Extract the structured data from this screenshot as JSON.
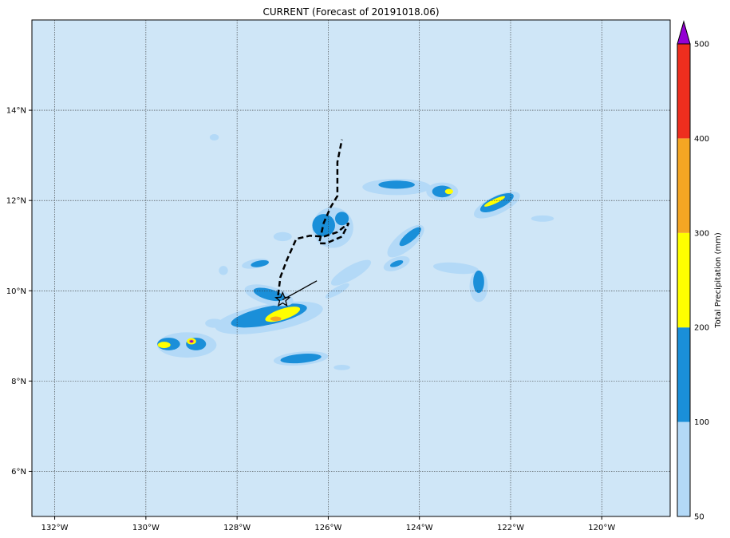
{
  "title": "CURRENT (Forecast of 20191018.06)",
  "map": {
    "lon_range": [
      -132.5,
      -118.5
    ],
    "lat_range": [
      5.0,
      16.0
    ],
    "ocean_color": "#cfe6f7",
    "grid": true,
    "x_ticks": [
      {
        "value": -132,
        "label": "132°W"
      },
      {
        "value": -130,
        "label": "130°W"
      },
      {
        "value": -128,
        "label": "128°W"
      },
      {
        "value": -126,
        "label": "126°W"
      },
      {
        "value": -124,
        "label": "124°W"
      },
      {
        "value": -122,
        "label": "122°W"
      },
      {
        "value": -120,
        "label": "120°W"
      }
    ],
    "y_ticks": [
      {
        "value": 6,
        "label": "6°N"
      },
      {
        "value": 8,
        "label": "8°N"
      },
      {
        "value": 10,
        "label": "10°N"
      },
      {
        "value": 12,
        "label": "12°N"
      },
      {
        "value": 14,
        "label": "14°N"
      }
    ]
  },
  "colorbar": {
    "label": "Total Precipitation (mm)",
    "levels": [
      50,
      100,
      200,
      300,
      400,
      500
    ],
    "colors": [
      "#b3d9f7",
      "#1a8fd9",
      "#ffff00",
      "#f5a623",
      "#ee2e1e"
    ],
    "extend_color": "#9400d3",
    "tick_labels": [
      "50",
      "100",
      "200",
      "300",
      "400",
      "500"
    ]
  },
  "storm_center": {
    "lon": -127.0,
    "lat": 9.8
  },
  "motion_vector": {
    "from": [
      -127.0,
      9.8
    ],
    "to": [
      -126.25,
      10.22
    ]
  },
  "forecast_track": [
    [
      -127.1,
      9.9
    ],
    [
      -127.05,
      10.3
    ],
    [
      -126.9,
      10.7
    ],
    [
      -126.7,
      11.15
    ],
    [
      -126.4,
      11.22
    ],
    [
      -126.1,
      11.2
    ],
    [
      -125.8,
      11.3
    ],
    [
      -125.55,
      11.5
    ],
    [
      -125.7,
      11.2
    ],
    [
      -126.05,
      11.05
    ],
    [
      -126.2,
      11.05
    ],
    [
      -126.1,
      11.5
    ],
    [
      -125.95,
      11.85
    ],
    [
      -125.8,
      12.1
    ],
    [
      -125.8,
      12.5
    ],
    [
      -125.8,
      12.85
    ],
    [
      -125.7,
      13.35
    ]
  ],
  "precip_areas": [
    {
      "level": 0,
      "lon": -129.1,
      "lat": 8.8,
      "rx": 0.65,
      "ry": 0.28,
      "rot": 0
    },
    {
      "level": 1,
      "lon": -129.5,
      "lat": 8.82,
      "rx": 0.25,
      "ry": 0.14,
      "rot": 0
    },
    {
      "level": 1,
      "lon": -128.9,
      "lat": 8.82,
      "rx": 0.22,
      "ry": 0.14,
      "rot": 0
    },
    {
      "level": 2,
      "lon": -129.6,
      "lat": 8.8,
      "rx": 0.14,
      "ry": 0.07,
      "rot": 0
    },
    {
      "level": 2,
      "lon": -129.0,
      "lat": 8.88,
      "rx": 0.1,
      "ry": 0.07,
      "rot": 0
    },
    {
      "level": 3,
      "lon": -129.0,
      "lat": 8.88,
      "rx": 0.06,
      "ry": 0.04,
      "rot": 0
    },
    {
      "level": 5,
      "lon": -129.0,
      "lat": 8.88,
      "rx": 0.035,
      "ry": 0.025,
      "rot": 0
    },
    {
      "level": 0,
      "lon": -128.5,
      "lat": 9.28,
      "rx": 0.2,
      "ry": 0.1,
      "rot": 0
    },
    {
      "level": 0,
      "lon": -127.3,
      "lat": 9.4,
      "rx": 1.2,
      "ry": 0.3,
      "rot": -10
    },
    {
      "level": 1,
      "lon": -127.3,
      "lat": 9.45,
      "rx": 0.85,
      "ry": 0.2,
      "rot": -12
    },
    {
      "level": 2,
      "lon": -127.0,
      "lat": 9.48,
      "rx": 0.4,
      "ry": 0.12,
      "rot": -18
    },
    {
      "level": 3,
      "lon": -127.15,
      "lat": 9.38,
      "rx": 0.12,
      "ry": 0.05,
      "rot": 0
    },
    {
      "level": 0,
      "lon": -127.3,
      "lat": 9.9,
      "rx": 0.55,
      "ry": 0.2,
      "rot": 15
    },
    {
      "level": 1,
      "lon": -127.3,
      "lat": 9.92,
      "rx": 0.35,
      "ry": 0.12,
      "rot": 15
    },
    {
      "level": 0,
      "lon": -126.6,
      "lat": 8.5,
      "rx": 0.6,
      "ry": 0.15,
      "rot": -5
    },
    {
      "level": 1,
      "lon": -126.6,
      "lat": 8.5,
      "rx": 0.45,
      "ry": 0.1,
      "rot": -5
    },
    {
      "level": 0,
      "lon": -125.9,
      "lat": 11.4,
      "rx": 0.45,
      "ry": 0.45,
      "rot": 0
    },
    {
      "level": 1,
      "lon": -126.1,
      "lat": 11.45,
      "rx": 0.25,
      "ry": 0.25,
      "rot": 0
    },
    {
      "level": 1,
      "lon": -125.7,
      "lat": 11.6,
      "rx": 0.15,
      "ry": 0.15,
      "rot": 0
    },
    {
      "level": 0,
      "lon": -125.5,
      "lat": 10.4,
      "rx": 0.5,
      "ry": 0.15,
      "rot": -30
    },
    {
      "level": 0,
      "lon": -124.5,
      "lat": 12.3,
      "rx": 0.75,
      "ry": 0.18,
      "rot": 0
    },
    {
      "level": 1,
      "lon": -124.5,
      "lat": 12.35,
      "rx": 0.4,
      "ry": 0.09,
      "rot": 0
    },
    {
      "level": 0,
      "lon": -123.5,
      "lat": 12.2,
      "rx": 0.35,
      "ry": 0.2,
      "rot": 0
    },
    {
      "level": 1,
      "lon": -123.5,
      "lat": 12.2,
      "rx": 0.22,
      "ry": 0.13,
      "rot": 0
    },
    {
      "level": 2,
      "lon": -123.35,
      "lat": 12.2,
      "rx": 0.09,
      "ry": 0.06,
      "rot": 0
    },
    {
      "level": 0,
      "lon": -124.3,
      "lat": 11.1,
      "rx": 0.5,
      "ry": 0.2,
      "rot": -40
    },
    {
      "level": 1,
      "lon": -124.2,
      "lat": 11.2,
      "rx": 0.3,
      "ry": 0.1,
      "rot": -40
    },
    {
      "level": 0,
      "lon": -124.5,
      "lat": 10.6,
      "rx": 0.3,
      "ry": 0.14,
      "rot": -20
    },
    {
      "level": 1,
      "lon": -124.5,
      "lat": 10.6,
      "rx": 0.15,
      "ry": 0.06,
      "rot": -20
    },
    {
      "level": 0,
      "lon": -122.3,
      "lat": 11.9,
      "rx": 0.55,
      "ry": 0.2,
      "rot": -25
    },
    {
      "level": 1,
      "lon": -122.3,
      "lat": 11.95,
      "rx": 0.4,
      "ry": 0.14,
      "rot": -25
    },
    {
      "level": 2,
      "lon": -122.35,
      "lat": 11.98,
      "rx": 0.25,
      "ry": 0.05,
      "rot": -25
    },
    {
      "level": 0,
      "lon": -121.3,
      "lat": 11.6,
      "rx": 0.25,
      "ry": 0.07,
      "rot": 0
    },
    {
      "level": 0,
      "lon": -123.2,
      "lat": 10.5,
      "rx": 0.5,
      "ry": 0.12,
      "rot": 5
    },
    {
      "level": 0,
      "lon": -122.7,
      "lat": 10.1,
      "rx": 0.2,
      "ry": 0.35,
      "rot": 0
    },
    {
      "level": 1,
      "lon": -122.7,
      "lat": 10.2,
      "rx": 0.12,
      "ry": 0.25,
      "rot": 0
    },
    {
      "level": 0,
      "lon": -128.3,
      "lat": 10.45,
      "rx": 0.1,
      "ry": 0.1,
      "rot": 0
    },
    {
      "level": 0,
      "lon": -127.6,
      "lat": 10.6,
      "rx": 0.3,
      "ry": 0.1,
      "rot": -10
    },
    {
      "level": 1,
      "lon": -127.5,
      "lat": 10.6,
      "rx": 0.2,
      "ry": 0.07,
      "rot": -10
    },
    {
      "level": 0,
      "lon": -127.0,
      "lat": 11.2,
      "rx": 0.2,
      "ry": 0.1,
      "rot": 0
    },
    {
      "level": 0,
      "lon": -128.5,
      "lat": 13.4,
      "rx": 0.1,
      "ry": 0.07,
      "rot": 0
    },
    {
      "level": 0,
      "lon": -125.7,
      "lat": 8.3,
      "rx": 0.18,
      "ry": 0.06,
      "rot": 0
    },
    {
      "level": 0,
      "lon": -125.8,
      "lat": 10.0,
      "rx": 0.3,
      "ry": 0.08,
      "rot": -30
    }
  ]
}
